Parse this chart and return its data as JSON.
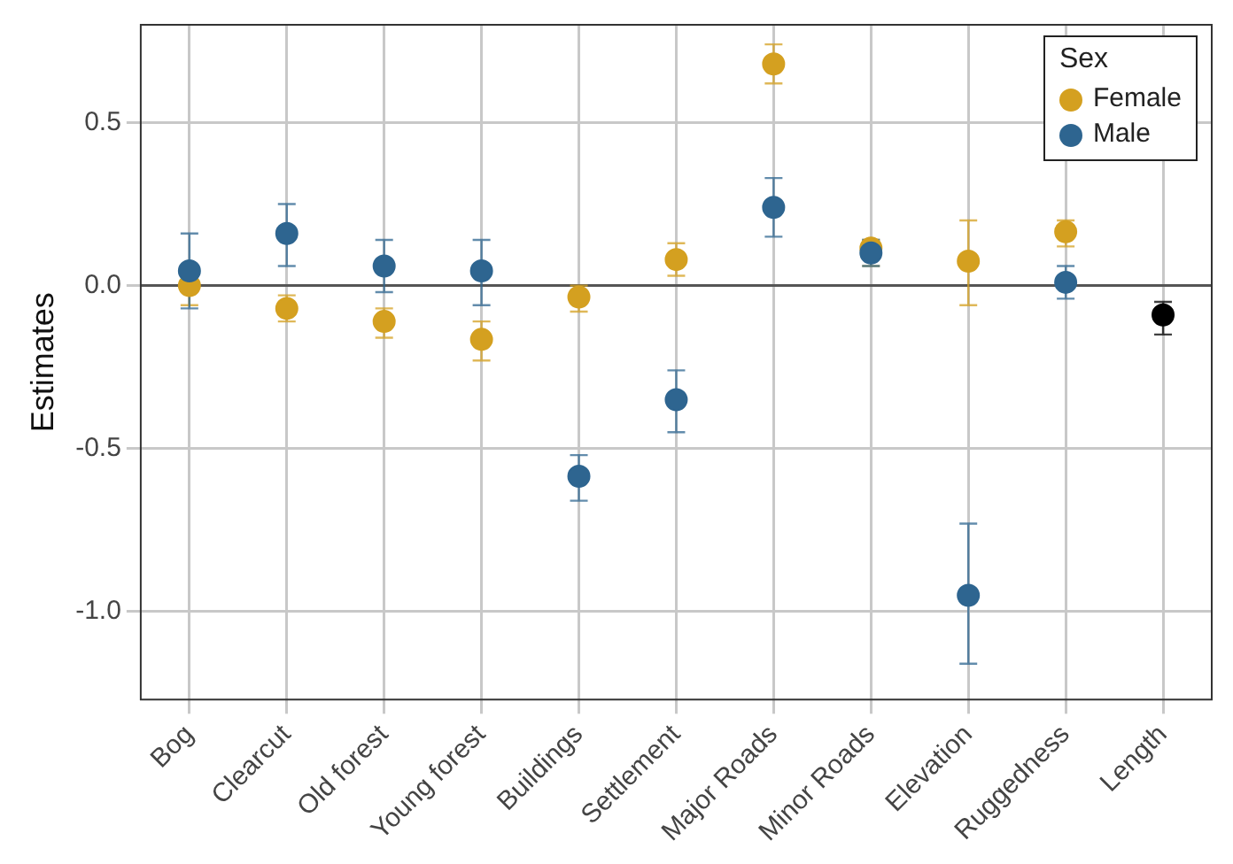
{
  "chart_data": {
    "type": "scatter",
    "ylabel": "Estimates",
    "legend_title": "Sex",
    "categories": [
      "Bog",
      "Clearcut",
      "Old forest",
      "Young forest",
      "Buildings",
      "Settlement",
      "Major Roads",
      "Minor Roads",
      "Elevation",
      "Ruggedness",
      "Length"
    ],
    "series": [
      {
        "name": "Female",
        "color": "#d4a020",
        "values": [
          0.0,
          -0.07,
          -0.11,
          -0.165,
          -0.035,
          0.08,
          0.68,
          0.115,
          0.075,
          0.165,
          null
        ],
        "errors": [
          [
            -0.06,
            0.0
          ],
          [
            -0.11,
            -0.03
          ],
          [
            -0.16,
            -0.07
          ],
          [
            -0.23,
            -0.11
          ],
          [
            -0.08,
            0.0
          ],
          [
            0.03,
            0.13
          ],
          [
            0.62,
            0.74
          ],
          [
            0.06,
            0.14
          ],
          [
            -0.06,
            0.2
          ],
          [
            0.12,
            0.2
          ],
          null
        ]
      },
      {
        "name": "Male",
        "color": "#2e6590",
        "values": [
          0.045,
          0.16,
          0.06,
          0.045,
          -0.585,
          -0.35,
          0.24,
          0.1,
          -0.95,
          0.01,
          null
        ],
        "errors": [
          [
            -0.07,
            0.16
          ],
          [
            0.06,
            0.25
          ],
          [
            -0.02,
            0.14
          ],
          [
            -0.06,
            0.14
          ],
          [
            -0.66,
            -0.52
          ],
          [
            -0.45,
            -0.26
          ],
          [
            0.15,
            0.33
          ],
          [
            0.06,
            0.14
          ],
          [
            -1.16,
            -0.73
          ],
          [
            -0.04,
            0.06
          ],
          null
        ]
      },
      {
        "color": "#000000",
        "values": [
          null,
          null,
          null,
          null,
          null,
          null,
          null,
          null,
          null,
          null,
          -0.09
        ],
        "errors": [
          null,
          null,
          null,
          null,
          null,
          null,
          null,
          null,
          null,
          null,
          [
            -0.15,
            -0.05
          ]
        ]
      }
    ],
    "ylim": [
      -1.27,
      0.8
    ],
    "yticks": [
      {
        "value": -1.0,
        "label": "-1.0"
      },
      {
        "value": -0.5,
        "label": "-0.5"
      },
      {
        "value": 0.0,
        "label": "0.0"
      },
      {
        "value": 0.5,
        "label": "0.5"
      }
    ],
    "ref_lines": [
      {
        "axis": "y",
        "value": 0,
        "color": "#555555"
      }
    ],
    "grid": true,
    "legend": "top right",
    "marker": "circle"
  }
}
